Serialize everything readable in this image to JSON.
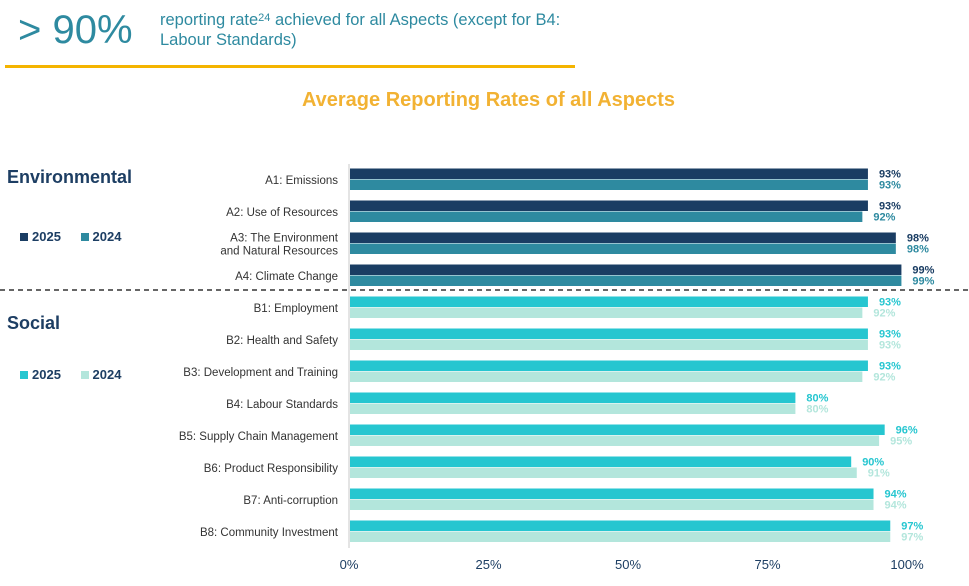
{
  "header": {
    "big_stat": "> 90%",
    "text_part1": "reporting rate",
    "footnote_ref": "24",
    "text_part2": " achieved for all Aspects (except for B4: Labour Standards)"
  },
  "chart_data": {
    "type": "bar",
    "orientation": "horizontal",
    "title": "Average Reporting Rates of all Aspects",
    "xlim": [
      0,
      100
    ],
    "xticks": [
      "0%",
      "25%",
      "50%",
      "75%",
      "100%"
    ],
    "groups": [
      {
        "name": "Environmental",
        "legend": [
          {
            "name": "2025",
            "color": "#1a3d63"
          },
          {
            "name": "2024",
            "color": "#2e8aa0"
          }
        ],
        "colors": {
          "2025": "#1a3d63",
          "2024": "#2e8aa0"
        },
        "label_colors": {
          "2025": "#1a3d63",
          "2024": "#2e8aa0"
        },
        "categories": [
          "A1: Emissions",
          "A2: Use of Resources",
          "A3: The Environment and Natural Resources",
          "A4: Climate Change"
        ],
        "category_lines": [
          [
            "A1: Emissions"
          ],
          [
            "A2: Use of Resources"
          ],
          [
            "A3: The Environment",
            "and Natural Resources"
          ],
          [
            "A4: Climate Change"
          ]
        ],
        "series": [
          {
            "name": "2025",
            "values": [
              93,
              93,
              98,
              99
            ]
          },
          {
            "name": "2024",
            "values": [
              93,
              92,
              98,
              99
            ]
          }
        ]
      },
      {
        "name": "Social",
        "legend": [
          {
            "name": "2025",
            "color": "#26c6d0"
          },
          {
            "name": "2024",
            "color": "#b3e6dc"
          }
        ],
        "colors": {
          "2025": "#26c6d0",
          "2024": "#b3e6dc"
        },
        "label_colors": {
          "2025": "#26c6d0",
          "2024": "#b3e6dc"
        },
        "categories": [
          "B1: Employment",
          "B2: Health and Safety",
          "B3: Development and Training",
          "B4: Labour Standards",
          "B5: Supply Chain Management",
          "B6: Product Responsibility",
          "B7: Anti-corruption",
          "B8: Community Investment"
        ],
        "category_lines": [
          [
            "B1: Employment"
          ],
          [
            "B2: Health and Safety"
          ],
          [
            "B3: Development and Training"
          ],
          [
            "B4: Labour Standards"
          ],
          [
            "B5: Supply Chain Management"
          ],
          [
            "B6: Product Responsibility"
          ],
          [
            "B7: Anti-corruption"
          ],
          [
            "B8: Community Investment"
          ]
        ],
        "series": [
          {
            "name": "2025",
            "values": [
              93,
              93,
              93,
              80,
              96,
              90,
              94,
              97
            ]
          },
          {
            "name": "2024",
            "values": [
              92,
              93,
              92,
              80,
              95,
              91,
              94,
              97
            ]
          }
        ]
      }
    ]
  }
}
